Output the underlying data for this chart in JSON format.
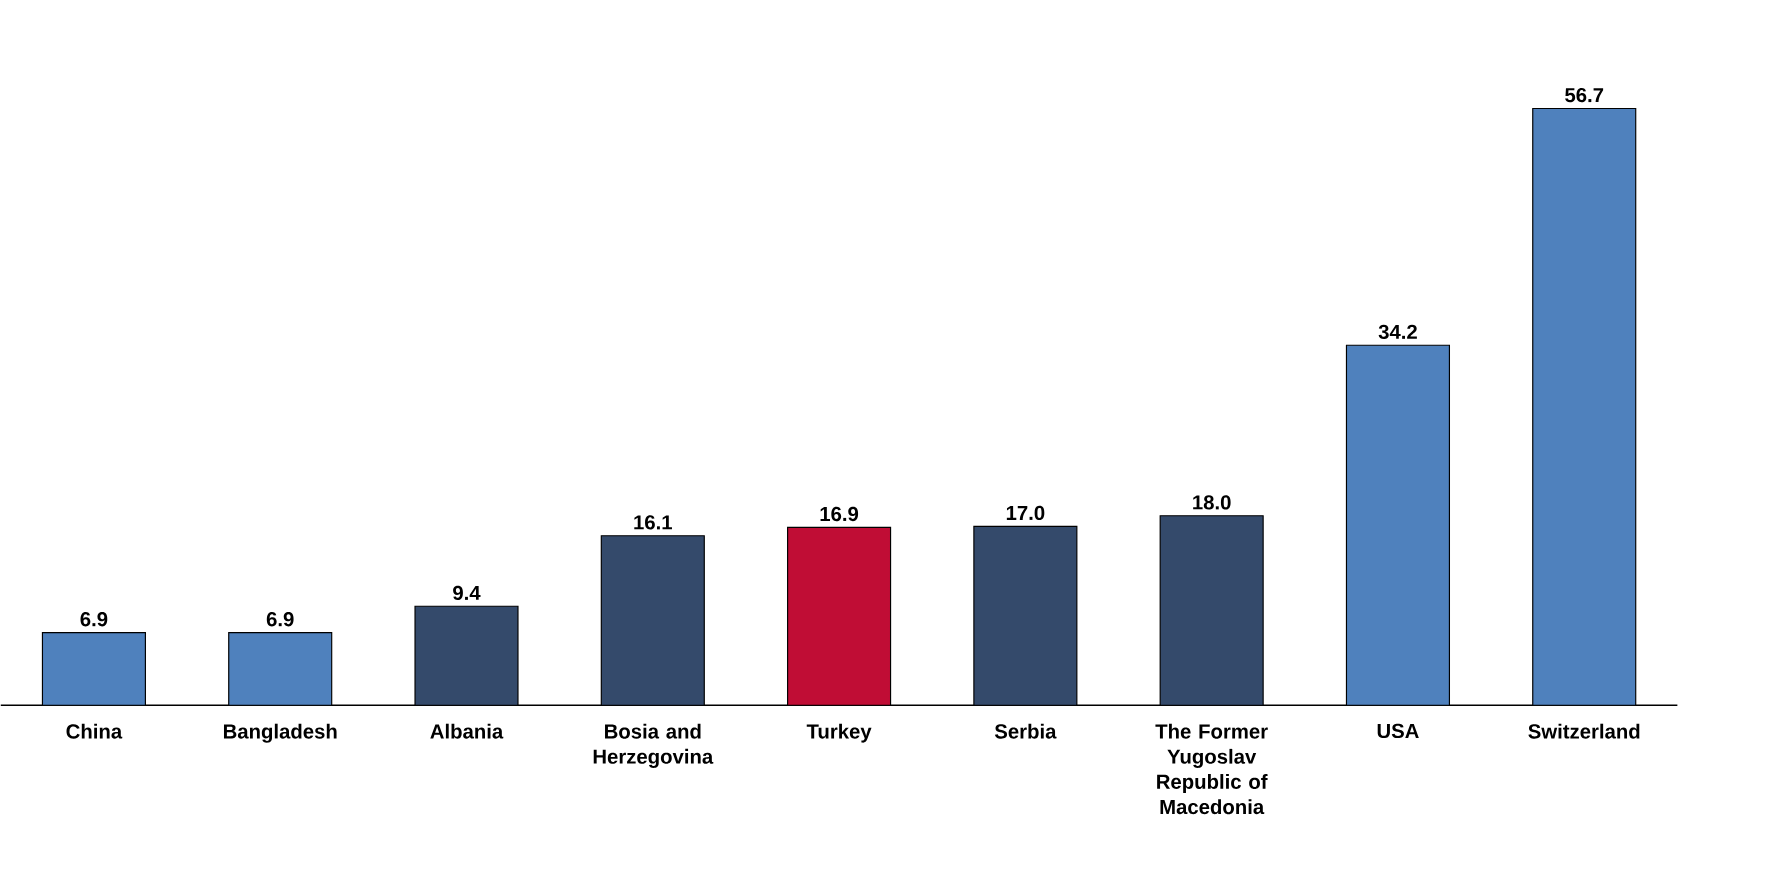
{
  "chart_data": {
    "type": "bar",
    "categories": [
      "China",
      "Bangladesh",
      "Albania",
      "Bosia and Herzegovina",
      "Turkey",
      "Serbia",
      "The Former Yugoslav Republic of Macedonia",
      "USA",
      "Switzerland"
    ],
    "values": [
      6.9,
      6.9,
      9.4,
      16.1,
      16.9,
      17.0,
      18.0,
      34.2,
      56.7
    ],
    "colors": [
      "#4f81bd",
      "#4f81bd",
      "#344a6b",
      "#344a6b",
      "#c00d35",
      "#344a6b",
      "#344a6b",
      "#4f81bd",
      "#4f81bd"
    ],
    "value_labels": [
      "6.9",
      "6.9",
      "9.4",
      "16.1",
      "16.9",
      "17.0",
      "18.0",
      "34.2",
      "56.7"
    ],
    "data_labels": false
  }
}
